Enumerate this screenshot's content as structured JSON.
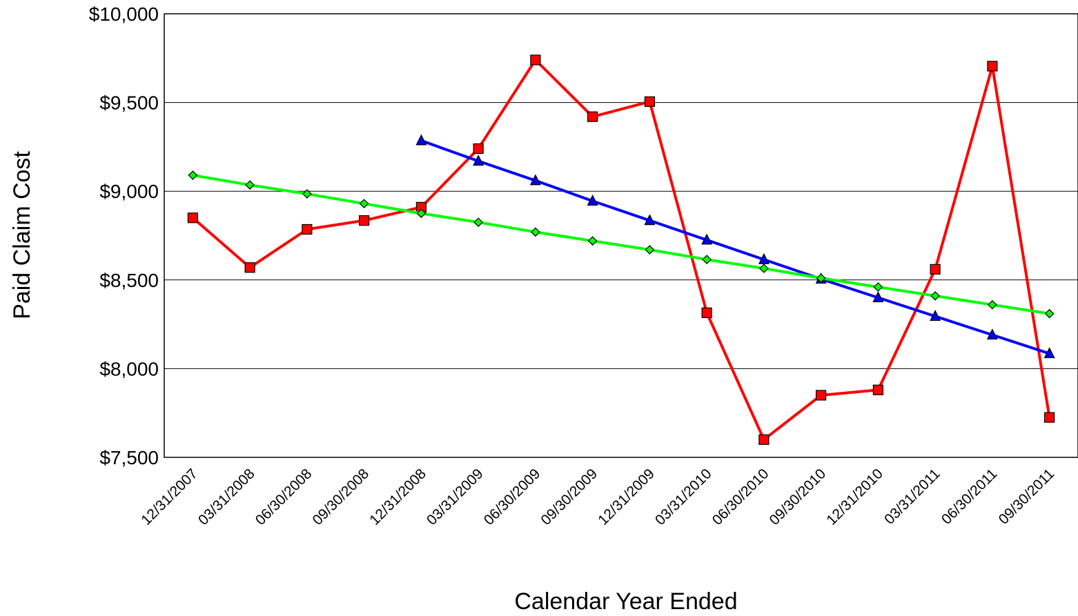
{
  "chart_data": {
    "type": "line",
    "xlabel": "Calendar Year Ended",
    "ylabel": "Paid Claim Cost",
    "ylim": [
      7500,
      10000
    ],
    "yticks": [
      "$7,500",
      "$8,000",
      "$8,500",
      "$9,000",
      "$9,500",
      "$10,000"
    ],
    "ytick_values": [
      7500,
      8000,
      8500,
      9000,
      9500,
      10000
    ],
    "grid": true,
    "categories": [
      "12/31/2007",
      "03/31/2008",
      "06/30/2008",
      "09/30/2008",
      "12/31/2008",
      "03/31/2009",
      "06/30/2009",
      "09/30/2009",
      "12/31/2009",
      "03/31/2010",
      "06/30/2010",
      "09/30/2010",
      "12/31/2010",
      "03/31/2011",
      "06/30/2011",
      "09/30/2011"
    ],
    "series": [
      {
        "color": "#ff0000",
        "marker": "square",
        "values": [
          8850,
          8570,
          8785,
          8835,
          8910,
          9240,
          9740,
          9420,
          9505,
          8315,
          7600,
          7850,
          7880,
          8560,
          9705,
          7725
        ]
      },
      {
        "color": "#0000ff",
        "marker": "triangle",
        "values": [
          null,
          null,
          null,
          null,
          9285,
          9170,
          9060,
          8945,
          8835,
          8725,
          8615,
          8505,
          8400,
          8295,
          8190,
          8085
        ]
      },
      {
        "color": "#00ff00",
        "marker": "diamond",
        "values": [
          9090,
          9035,
          8985,
          8930,
          8875,
          8825,
          8770,
          8720,
          8670,
          8615,
          8565,
          8510,
          8460,
          8410,
          8360,
          8310
        ]
      }
    ]
  }
}
